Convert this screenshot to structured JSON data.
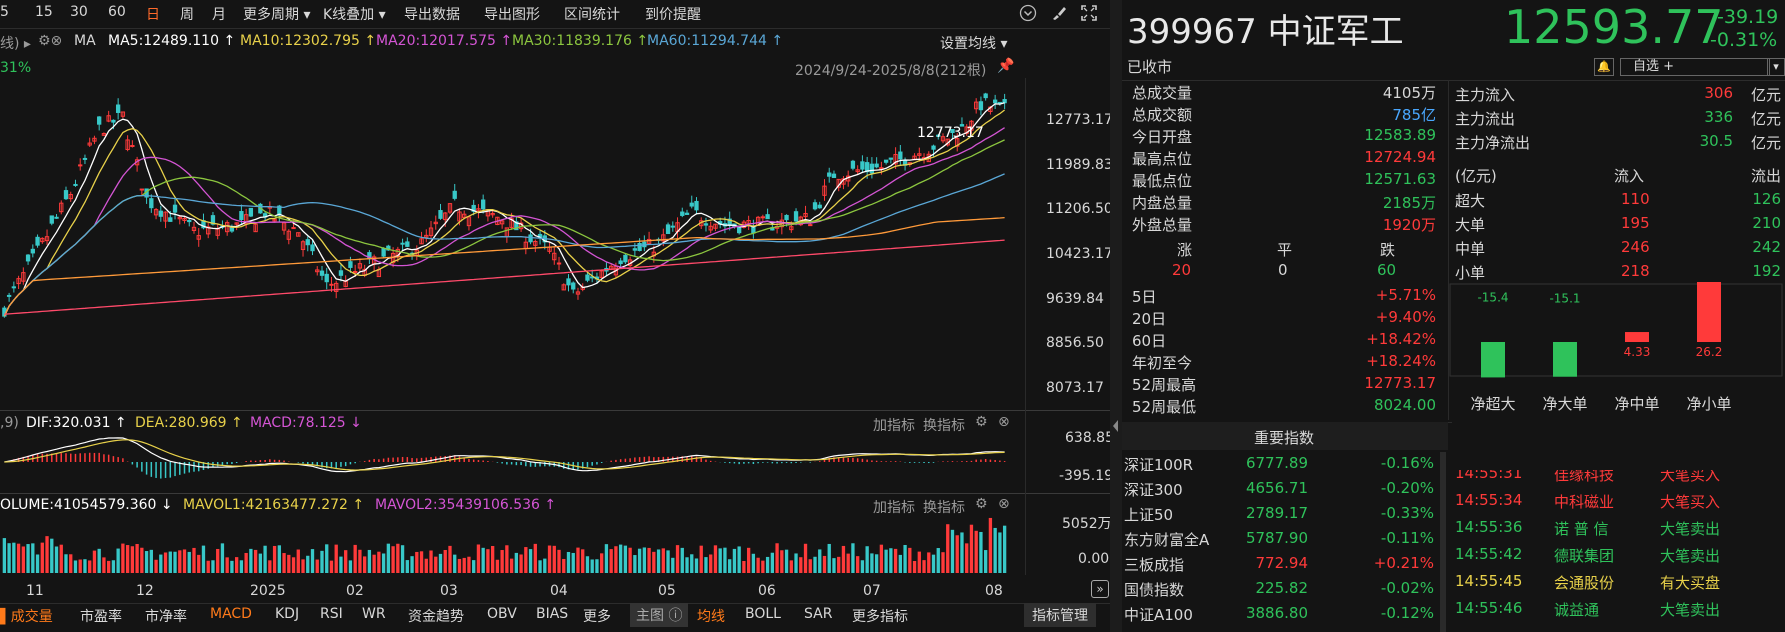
{
  "toolbar": {
    "periods": [
      "5",
      "15",
      "30",
      "60",
      "日",
      "周",
      "月"
    ],
    "active_period": "日",
    "buttons": [
      "更多周期 ▾",
      "K线叠加 ▾",
      "导出数据",
      "导出图形",
      "区间统计",
      "到价提醒"
    ]
  },
  "ma_bar": {
    "prefix": "线) ▸",
    "ma_label": "MA",
    "items": [
      {
        "text": "MA5:12489.110 ↑",
        "color": "#ffffff"
      },
      {
        "text": "MA10:12302.795 ↑",
        "color": "#e8d14a"
      },
      {
        "text": "MA20:12017.575 ↑",
        "color": "#d455d4"
      },
      {
        "text": "MA30:11839.176 ↑",
        "color": "#8cc63f"
      },
      {
        "text": "MA60:11294.744 ↑",
        "color": "#5aa7d6"
      }
    ],
    "settings": "设置均线 ▾",
    "left_pct": "31%",
    "range_text": "2024/9/24-2025/8/8(212根)"
  },
  "price_axis": [
    "12773.17",
    "11989.83",
    "11206.50",
    "10423.17",
    "9639.84",
    "8856.50",
    "8073.17"
  ],
  "high_marker": "12773.17",
  "macd_bar": {
    "prefix": ",9)",
    "dif": "DIF:320.031 ↑",
    "dea": "DEA:280.969 ↑",
    "macd": "MACD:78.125 ↓",
    "add": "加指标",
    "switch": "换指标",
    "axis": [
      "638.85",
      "-395.19"
    ]
  },
  "vol_bar": {
    "volume": "OLUME:41054579.360 ↓",
    "mavol1": "MAVOL1:42163477.272 ↑",
    "mavol2": "MAVOL2:35439106.536 ↑",
    "add": "加指标",
    "switch": "换指标",
    "axis": [
      "5052万",
      "0.00"
    ]
  },
  "date_axis": [
    "11",
    "12",
    "2025",
    "02",
    "03",
    "04",
    "05",
    "06",
    "07",
    "08"
  ],
  "bottom_tabs": [
    "成交量",
    "市盈率",
    "市净率",
    "MACD",
    "KDJ",
    "RSI",
    "WR",
    "资金趋势",
    "OBV",
    "BIAS",
    "更多",
    "主图",
    "均线",
    "BOLL",
    "SAR",
    "更多指标",
    "指标管理"
  ],
  "stock": {
    "code_name": "399967 中证军工",
    "price": "12593.77",
    "change": "-39.19",
    "change_pct": "-0.31%",
    "status": "已收市",
    "watch_btn": "自选 +"
  },
  "quote_rows": [
    {
      "label": "总成交量",
      "value": "4105万",
      "cls": "lbl"
    },
    {
      "label": "总成交额",
      "value": "785亿",
      "cls": "blu"
    },
    {
      "label": "今日开盘",
      "value": "12583.89",
      "cls": "dn"
    },
    {
      "label": "最高点位",
      "value": "12724.94",
      "cls": "up"
    },
    {
      "label": "最低点位",
      "value": "12571.63",
      "cls": "dn"
    },
    {
      "label": "内盘总量",
      "value": "2185万",
      "cls": "dn"
    },
    {
      "label": "外盘总量",
      "value": "1920万",
      "cls": "up"
    }
  ],
  "breadth": {
    "up_label": "涨",
    "flat_label": "平",
    "down_label": "跌",
    "up": "20",
    "flat": "0",
    "down": "60"
  },
  "perf_rows": [
    {
      "label": "5日",
      "value": "+5.71%",
      "cls": "up"
    },
    {
      "label": "20日",
      "value": "+9.40%",
      "cls": "up"
    },
    {
      "label": "60日",
      "value": "+18.42%",
      "cls": "up"
    },
    {
      "label": "年初至今",
      "value": "+18.24%",
      "cls": "up"
    },
    {
      "label": "52周最高",
      "value": "12773.17",
      "cls": "up"
    },
    {
      "label": "52周最低",
      "value": "8024.00",
      "cls": "dn"
    }
  ],
  "flow_summary": [
    {
      "label": "主力流入",
      "value": "306",
      "unit": "亿元",
      "cls": "up"
    },
    {
      "label": "主力流出",
      "value": "336",
      "unit": "亿元",
      "cls": "dn"
    },
    {
      "label": "主力净流出",
      "value": "30.5",
      "unit": "亿元",
      "cls": "dn"
    }
  ],
  "flow_table": {
    "headers": [
      "(亿元)",
      "流入",
      "流出"
    ],
    "rows": [
      {
        "label": "超大",
        "in": "110",
        "out": "126"
      },
      {
        "label": "大单",
        "in": "195",
        "out": "210"
      },
      {
        "label": "中单",
        "in": "246",
        "out": "242"
      },
      {
        "label": "小单",
        "in": "218",
        "out": "192"
      }
    ]
  },
  "chart_data": {
    "type": "bar",
    "categories": [
      "净超大",
      "净大单",
      "净中单",
      "净小单"
    ],
    "values": [
      -15.4,
      -15.1,
      4.33,
      26.2
    ],
    "labels": [
      "-15.4",
      "-15.1",
      "4.33",
      "26.2"
    ]
  },
  "index_panel": {
    "title": "重要指数",
    "rows": [
      {
        "name": "深证100R",
        "value": "6777.89",
        "pct": "-0.16%",
        "cls": "dn"
      },
      {
        "name": "深证300",
        "value": "4656.71",
        "pct": "-0.20%",
        "cls": "dn"
      },
      {
        "name": "上证50",
        "value": "2789.17",
        "pct": "-0.33%",
        "cls": "dn"
      },
      {
        "name": "东方财富全A",
        "value": "5787.90",
        "pct": "-0.11%",
        "cls": "dn"
      },
      {
        "name": "三板成指",
        "value": "772.94",
        "pct": "+0.21%",
        "cls": "up"
      },
      {
        "name": "国债指数",
        "value": "225.82",
        "pct": "-0.02%",
        "cls": "dn"
      },
      {
        "name": "中证A100",
        "value": "3886.80",
        "pct": "-0.12%",
        "cls": "dn"
      }
    ]
  },
  "trades": [
    {
      "time": "14:55:31",
      "name": "佳缘科技",
      "action": "大笔买入",
      "cls": "up"
    },
    {
      "time": "14:55:34",
      "name": "中科磁业",
      "action": "大笔买入",
      "cls": "up"
    },
    {
      "time": "14:55:36",
      "name": "诺 普 信",
      "action": "大笔卖出",
      "cls": "dn"
    },
    {
      "time": "14:55:42",
      "name": "德联集团",
      "action": "大笔卖出",
      "cls": "dn"
    },
    {
      "time": "14:55:45",
      "name": "会通股份",
      "action": "有大买盘",
      "cls": "yel"
    },
    {
      "time": "14:55:46",
      "name": "诚益通",
      "action": "大笔卖出",
      "cls": "dn"
    }
  ],
  "colors": {
    "up": "#ff3a3a",
    "down": "#2fc25b",
    "bg": "#141414",
    "accent": "#ff7a1a"
  }
}
